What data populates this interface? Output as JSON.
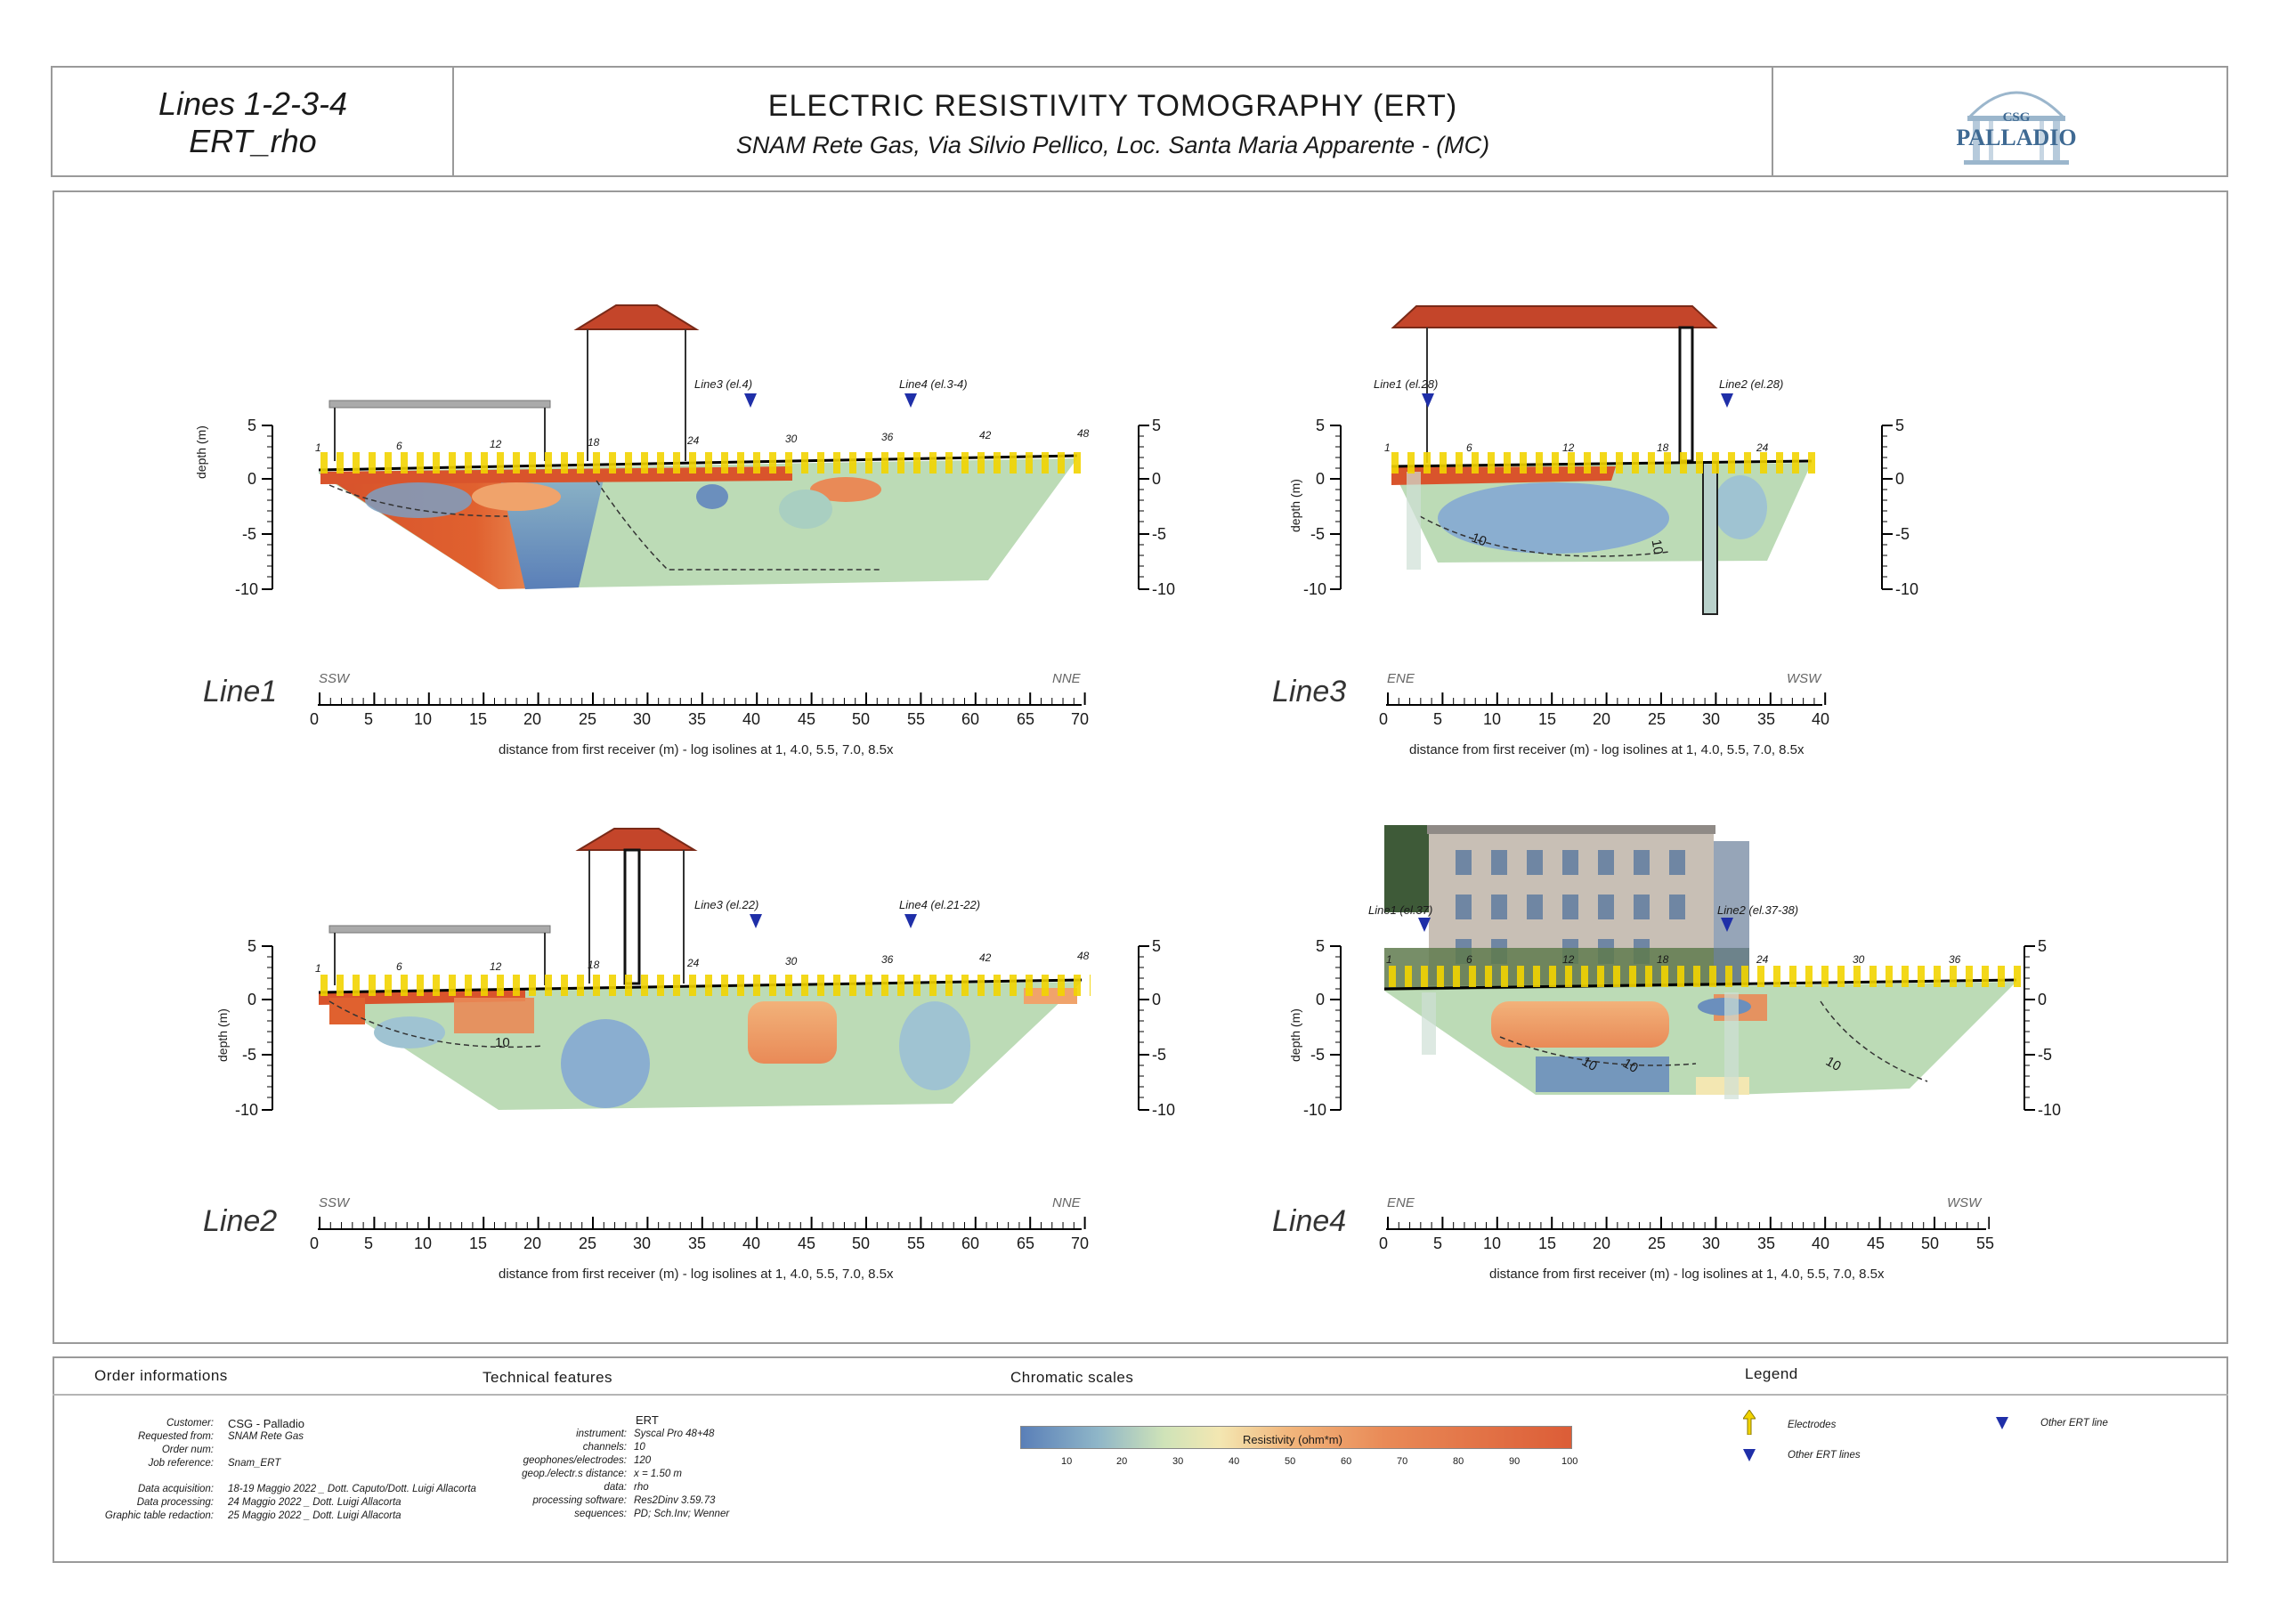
{
  "header": {
    "left_line1": "Lines 1-2-3-4",
    "left_line2": "ERT_rho",
    "title": "ELECTRIC  RESISTIVITY  TOMOGRAPHY  (ERT)",
    "subtitle": "SNAM Rete Gas, Via Silvio Pellico, Loc. Santa Maria Apparente - (MC)",
    "logo_top": "CSG",
    "logo_bottom": "PALLADIO"
  },
  "common": {
    "depth_label": "depth (m)",
    "caption": "distance from first receiver (m) - log isolines at 1, 4.0, 5.5, 7.0, 8.5x",
    "depth_ticks": [
      "5",
      "0",
      "-5",
      "-10"
    ],
    "right_ticks": [
      "5",
      "0",
      "-5",
      "-10"
    ]
  },
  "sections": [
    {
      "id": "line1",
      "name": "Line1",
      "dir_left": "SSW",
      "dir_right": "NNE",
      "distance_ticks": [
        "0",
        "5",
        "10",
        "15",
        "20",
        "25",
        "30",
        "35",
        "40",
        "45",
        "50",
        "55",
        "60",
        "65",
        "70"
      ],
      "electrode_labels": [
        "1",
        "6",
        "12",
        "18",
        "24",
        "30",
        "36",
        "42",
        "48"
      ],
      "markers": [
        {
          "label": "Line3  (el.4)"
        },
        {
          "label": "Line4  (el.3-4)"
        }
      ]
    },
    {
      "id": "line3",
      "name": "Line3",
      "dir_left": "ENE",
      "dir_right": "WSW",
      "distance_ticks": [
        "0",
        "5",
        "10",
        "15",
        "20",
        "25",
        "30",
        "35",
        "40"
      ],
      "electrode_labels": [
        "1",
        "6",
        "12",
        "18",
        "24"
      ],
      "markers": [
        {
          "label": "Line1 (el.28)"
        },
        {
          "label": "Line2  (el.28)"
        }
      ],
      "isolines": [
        "10",
        "10"
      ]
    },
    {
      "id": "line2",
      "name": "Line2",
      "dir_left": "SSW",
      "dir_right": "NNE",
      "distance_ticks": [
        "0",
        "5",
        "10",
        "15",
        "20",
        "25",
        "30",
        "35",
        "40",
        "45",
        "50",
        "55",
        "60",
        "65",
        "70"
      ],
      "electrode_labels": [
        "1",
        "6",
        "12",
        "18",
        "24",
        "30",
        "36",
        "42",
        "48"
      ],
      "markers": [
        {
          "label": "Line3 (el.22)"
        },
        {
          "label": "Line4  (el.21-22)"
        }
      ],
      "isolines": [
        "10"
      ]
    },
    {
      "id": "line4",
      "name": "Line4",
      "dir_left": "ENE",
      "dir_right": "WSW",
      "distance_ticks": [
        "0",
        "5",
        "10",
        "15",
        "20",
        "25",
        "30",
        "35",
        "40",
        "45",
        "50",
        "55"
      ],
      "electrode_labels": [
        "1",
        "6",
        "12",
        "18",
        "24",
        "30",
        "36"
      ],
      "markers": [
        {
          "label": "Line1 (el.37)"
        },
        {
          "label": "Line2  (el.37-38)"
        }
      ],
      "isolines": [
        "10",
        "10",
        "10"
      ]
    }
  ],
  "order": {
    "heading": "Order informations",
    "rows": [
      {
        "k": "Customer:",
        "v": "CSG - Palladio"
      },
      {
        "k": "Requested from:",
        "v": "SNAM Rete Gas"
      },
      {
        "k": "Order num:",
        "v": ""
      },
      {
        "k": "Job reference:",
        "v": "Snam_ERT"
      },
      {
        "k": "Data acquisition:",
        "v": "18-19 Maggio 2022 _ Dott. Caputo/Dott. Luigi Allacorta"
      },
      {
        "k": "Data processing:",
        "v": "24 Maggio 2022 _ Dott. Luigi Allacorta"
      },
      {
        "k": "Graphic table redaction:",
        "v": "25 Maggio 2022 _ Dott. Luigi Allacorta"
      }
    ]
  },
  "technical": {
    "heading": "Technical features",
    "title": "ERT",
    "rows": [
      {
        "k": "instrument:",
        "v": "Syscal Pro 48+48"
      },
      {
        "k": "channels:",
        "v": "10"
      },
      {
        "k": "geophones/electrodes:",
        "v": "120"
      },
      {
        "k": "geop./electr.s distance:",
        "v": "x = 1.50 m"
      },
      {
        "k": "data:",
        "v": "rho"
      },
      {
        "k": "processing software:",
        "v": "Res2Dinv 3.59.73"
      },
      {
        "k": "sequences:",
        "v": "PD; Sch.Inv; Wenner"
      }
    ]
  },
  "scale": {
    "heading": "Chromatic scales",
    "label": "Resistivity (ohm*m)",
    "ticks": [
      "10",
      "20",
      "30",
      "40",
      "50",
      "60",
      "70",
      "80",
      "90",
      "100"
    ],
    "colors": [
      "#5a7fb8",
      "#8fb6c8",
      "#cfe3b8",
      "#f3e7b2",
      "#f2b87e",
      "#e98a57",
      "#dc5d37"
    ]
  },
  "legend": {
    "heading": "Legend",
    "electrodes": "Electrodes",
    "other_ert_lines": "Other ERT lines",
    "other_ert_line": "Other ERT line"
  }
}
